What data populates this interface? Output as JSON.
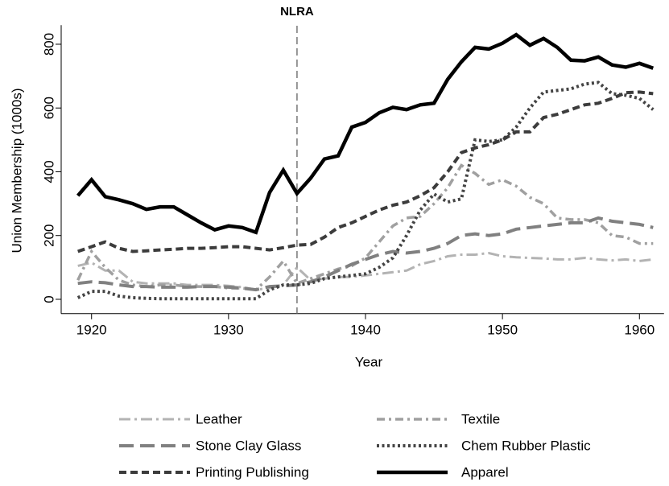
{
  "chart_data": {
    "type": "line",
    "x_label": "Year",
    "y_label": "Union Membership (1000s)",
    "annotation": {
      "text": "NLRA",
      "x": 1935
    },
    "x": [
      1919,
      1920,
      1921,
      1922,
      1923,
      1924,
      1925,
      1926,
      1927,
      1928,
      1929,
      1930,
      1931,
      1932,
      1933,
      1934,
      1935,
      1936,
      1937,
      1938,
      1939,
      1940,
      1941,
      1942,
      1943,
      1944,
      1945,
      1946,
      1947,
      1948,
      1949,
      1950,
      1951,
      1952,
      1953,
      1954,
      1955,
      1956,
      1957,
      1958,
      1959,
      1960,
      1961
    ],
    "xlim": [
      1918.5,
      1961.5
    ],
    "xticks": [
      1920,
      1930,
      1940,
      1950,
      1960
    ],
    "ylim": [
      -45,
      860
    ],
    "yticks": [
      0,
      200,
      400,
      600,
      800
    ],
    "series": [
      {
        "name": "Leather",
        "color": "#b3b3b3",
        "values": [
          105,
          115,
          90,
          90,
          55,
          50,
          50,
          50,
          45,
          45,
          45,
          42,
          38,
          30,
          35,
          45,
          100,
          60,
          65,
          70,
          70,
          75,
          80,
          85,
          90,
          110,
          120,
          135,
          140,
          140,
          145,
          135,
          132,
          130,
          128,
          125,
          125,
          130,
          125,
          122,
          125,
          120,
          125
        ]
      },
      {
        "name": "Textile",
        "color": "#a0a0a0",
        "values": [
          60,
          150,
          100,
          60,
          45,
          40,
          45,
          45,
          40,
          40,
          40,
          35,
          35,
          30,
          70,
          120,
          50,
          65,
          80,
          95,
          105,
          130,
          180,
          230,
          255,
          260,
          300,
          350,
          420,
          395,
          360,
          375,
          355,
          320,
          300,
          255,
          250,
          250,
          240,
          200,
          195,
          175,
          175
        ]
      },
      {
        "name": "Stone Clay Glass",
        "color": "#808080",
        "values": [
          50,
          55,
          52,
          45,
          40,
          40,
          38,
          38,
          38,
          40,
          40,
          38,
          35,
          30,
          40,
          42,
          45,
          55,
          70,
          90,
          110,
          125,
          140,
          150,
          145,
          150,
          160,
          175,
          200,
          205,
          200,
          205,
          220,
          225,
          230,
          235,
          240,
          240,
          255,
          245,
          240,
          235,
          225
        ]
      },
      {
        "name": "Chem Rubber Plastic",
        "color": "#444444",
        "values": [
          5,
          25,
          25,
          10,
          5,
          3,
          2,
          2,
          2,
          2,
          2,
          2,
          2,
          2,
          30,
          45,
          45,
          50,
          65,
          70,
          75,
          80,
          100,
          130,
          200,
          280,
          330,
          305,
          315,
          500,
          495,
          500,
          540,
          600,
          650,
          655,
          660,
          675,
          680,
          645,
          640,
          630,
          595
        ]
      },
      {
        "name": "Printing Publishing",
        "color": "#3c3c3c",
        "values": [
          150,
          165,
          180,
          160,
          150,
          152,
          155,
          157,
          160,
          160,
          162,
          165,
          165,
          160,
          155,
          162,
          170,
          172,
          195,
          225,
          240,
          260,
          280,
          295,
          305,
          325,
          350,
          400,
          460,
          475,
          485,
          500,
          525,
          525,
          570,
          580,
          595,
          610,
          615,
          630,
          648,
          650,
          645
        ]
      },
      {
        "name": "Apparel",
        "color": "#000000",
        "values": [
          325,
          375,
          322,
          312,
          300,
          282,
          290,
          290,
          265,
          240,
          218,
          230,
          225,
          210,
          335,
          405,
          332,
          380,
          440,
          450,
          540,
          555,
          585,
          602,
          595,
          610,
          615,
          690,
          745,
          790,
          785,
          803,
          830,
          797,
          818,
          790,
          750,
          748,
          760,
          735,
          728,
          740,
          725
        ]
      }
    ]
  }
}
